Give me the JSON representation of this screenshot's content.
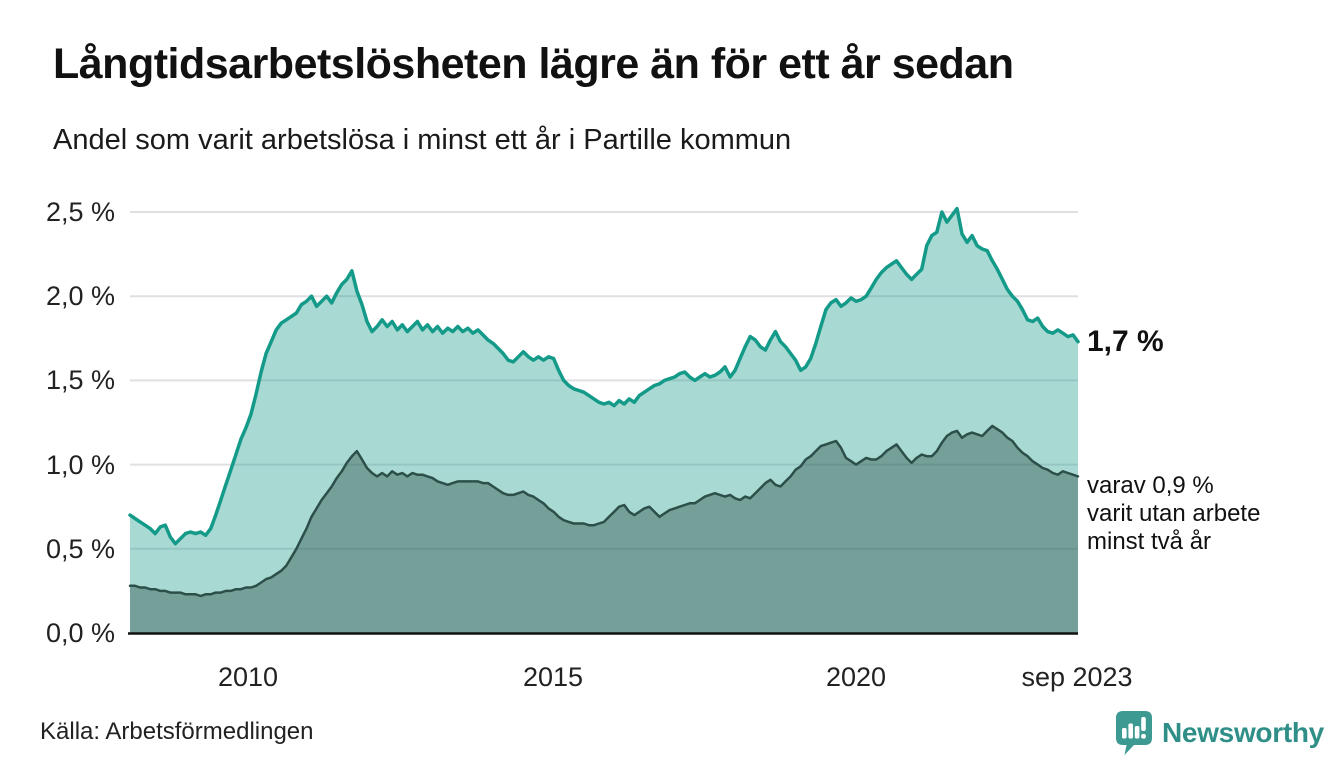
{
  "header": {
    "title": "Långtidsarbetslösheten lägre än för ett år sedan",
    "subtitle": "Andel som varit arbetslösa i minst ett år i Partille kommun"
  },
  "footer": {
    "source": "Källa: Arbetsförmedlingen",
    "brand": "Newsworthy"
  },
  "colors": {
    "line_1yr": "#149a89",
    "fill_1yr": "rgba(25,154,138,0.38)",
    "line_2yr": "#2d4f49",
    "fill_2yr": "rgba(47,79,73,0.42)",
    "gridline": "#e0e0e4",
    "axis": "#111111",
    "brand_teal": "#3d9a92"
  },
  "chart_data": {
    "type": "area",
    "title": "Långtidsarbetslösheten lägre än för ett år sedan",
    "subtitle": "Andel som varit arbetslösa i minst ett år i Partille kommun",
    "x_start": "jan 2008",
    "x_end": "sep 2023",
    "x_months": 189,
    "ylim": [
      0,
      2.5
    ],
    "grid": true,
    "y_axis": {
      "ticks": [
        "2,5 %",
        "2,0 %",
        "1,5 %",
        "1,0 %",
        "0,5 %",
        "0,0 %"
      ],
      "tick_values": [
        2.5,
        2.0,
        1.5,
        1.0,
        0.5,
        0.0
      ]
    },
    "x_axis": {
      "ticks": [
        "2010",
        "2015",
        "2020",
        "sep 2023"
      ],
      "tick_years": [
        2010,
        2015,
        2020,
        2023.67
      ]
    },
    "annotations": {
      "end_label_1yr": "1,7 %",
      "end_label_2yr_lines": [
        "varav 0,9 %",
        "varit utan arbete",
        "minst två år"
      ]
    },
    "series": [
      {
        "name": "arbetslösa minst ett år",
        "end_value": 1.7,
        "values": [
          0.7,
          0.68,
          0.66,
          0.64,
          0.62,
          0.59,
          0.63,
          0.64,
          0.57,
          0.53,
          0.56,
          0.59,
          0.6,
          0.59,
          0.6,
          0.58,
          0.62,
          0.7,
          0.79,
          0.88,
          0.97,
          1.06,
          1.15,
          1.22,
          1.3,
          1.42,
          1.55,
          1.66,
          1.73,
          1.8,
          1.84,
          1.86,
          1.88,
          1.9,
          1.95,
          1.97,
          2.0,
          1.94,
          1.97,
          2.0,
          1.96,
          2.02,
          2.07,
          2.1,
          2.15,
          2.03,
          1.95,
          1.85,
          1.79,
          1.82,
          1.86,
          1.82,
          1.85,
          1.8,
          1.83,
          1.79,
          1.82,
          1.85,
          1.8,
          1.83,
          1.79,
          1.82,
          1.78,
          1.81,
          1.79,
          1.82,
          1.79,
          1.81,
          1.78,
          1.8,
          1.77,
          1.74,
          1.72,
          1.69,
          1.66,
          1.62,
          1.61,
          1.64,
          1.67,
          1.64,
          1.62,
          1.64,
          1.62,
          1.64,
          1.63,
          1.56,
          1.5,
          1.47,
          1.45,
          1.44,
          1.43,
          1.41,
          1.39,
          1.37,
          1.36,
          1.37,
          1.35,
          1.38,
          1.36,
          1.39,
          1.37,
          1.41,
          1.43,
          1.45,
          1.47,
          1.48,
          1.5,
          1.51,
          1.52,
          1.54,
          1.55,
          1.52,
          1.5,
          1.52,
          1.54,
          1.52,
          1.53,
          1.55,
          1.58,
          1.52,
          1.56,
          1.63,
          1.7,
          1.76,
          1.74,
          1.7,
          1.68,
          1.74,
          1.79,
          1.73,
          1.7,
          1.66,
          1.62,
          1.56,
          1.58,
          1.63,
          1.72,
          1.82,
          1.92,
          1.96,
          1.98,
          1.94,
          1.96,
          1.99,
          1.97,
          1.98,
          2.0,
          2.05,
          2.1,
          2.14,
          2.17,
          2.19,
          2.21,
          2.17,
          2.13,
          2.1,
          2.13,
          2.16,
          2.3,
          2.36,
          2.38,
          2.5,
          2.44,
          2.48,
          2.52,
          2.37,
          2.32,
          2.36,
          2.3,
          2.28,
          2.27,
          2.21,
          2.16,
          2.1,
          2.04,
          2.0,
          1.97,
          1.92,
          1.86,
          1.85,
          1.87,
          1.82,
          1.79,
          1.78,
          1.8,
          1.78,
          1.76,
          1.77,
          1.73
        ]
      },
      {
        "name": "varav utan arbete minst två år",
        "end_value": 0.9,
        "values": [
          0.28,
          0.28,
          0.27,
          0.27,
          0.26,
          0.26,
          0.25,
          0.25,
          0.24,
          0.24,
          0.24,
          0.23,
          0.23,
          0.23,
          0.22,
          0.23,
          0.23,
          0.24,
          0.24,
          0.25,
          0.25,
          0.26,
          0.26,
          0.27,
          0.27,
          0.28,
          0.3,
          0.32,
          0.33,
          0.35,
          0.37,
          0.4,
          0.45,
          0.5,
          0.56,
          0.62,
          0.69,
          0.74,
          0.79,
          0.83,
          0.87,
          0.92,
          0.96,
          1.01,
          1.05,
          1.08,
          1.03,
          0.98,
          0.95,
          0.93,
          0.95,
          0.93,
          0.96,
          0.94,
          0.95,
          0.93,
          0.95,
          0.94,
          0.94,
          0.93,
          0.92,
          0.9,
          0.89,
          0.88,
          0.89,
          0.9,
          0.9,
          0.9,
          0.9,
          0.9,
          0.89,
          0.89,
          0.87,
          0.85,
          0.83,
          0.82,
          0.82,
          0.83,
          0.84,
          0.82,
          0.81,
          0.79,
          0.77,
          0.74,
          0.72,
          0.69,
          0.67,
          0.66,
          0.65,
          0.65,
          0.65,
          0.64,
          0.64,
          0.65,
          0.66,
          0.69,
          0.72,
          0.75,
          0.76,
          0.72,
          0.7,
          0.72,
          0.74,
          0.75,
          0.72,
          0.69,
          0.71,
          0.73,
          0.74,
          0.75,
          0.76,
          0.77,
          0.77,
          0.79,
          0.81,
          0.82,
          0.83,
          0.82,
          0.81,
          0.82,
          0.8,
          0.79,
          0.81,
          0.8,
          0.83,
          0.86,
          0.89,
          0.91,
          0.88,
          0.87,
          0.9,
          0.93,
          0.97,
          0.99,
          1.03,
          1.05,
          1.08,
          1.11,
          1.12,
          1.13,
          1.14,
          1.1,
          1.04,
          1.02,
          1.0,
          1.02,
          1.04,
          1.03,
          1.03,
          1.05,
          1.08,
          1.1,
          1.12,
          1.08,
          1.04,
          1.01,
          1.04,
          1.06,
          1.05,
          1.05,
          1.08,
          1.13,
          1.17,
          1.19,
          1.2,
          1.16,
          1.18,
          1.19,
          1.18,
          1.17,
          1.2,
          1.23,
          1.21,
          1.19,
          1.16,
          1.14,
          1.1,
          1.07,
          1.05,
          1.02,
          1.0,
          0.98,
          0.97,
          0.95,
          0.94,
          0.96,
          0.95,
          0.94,
          0.93
        ]
      }
    ]
  }
}
